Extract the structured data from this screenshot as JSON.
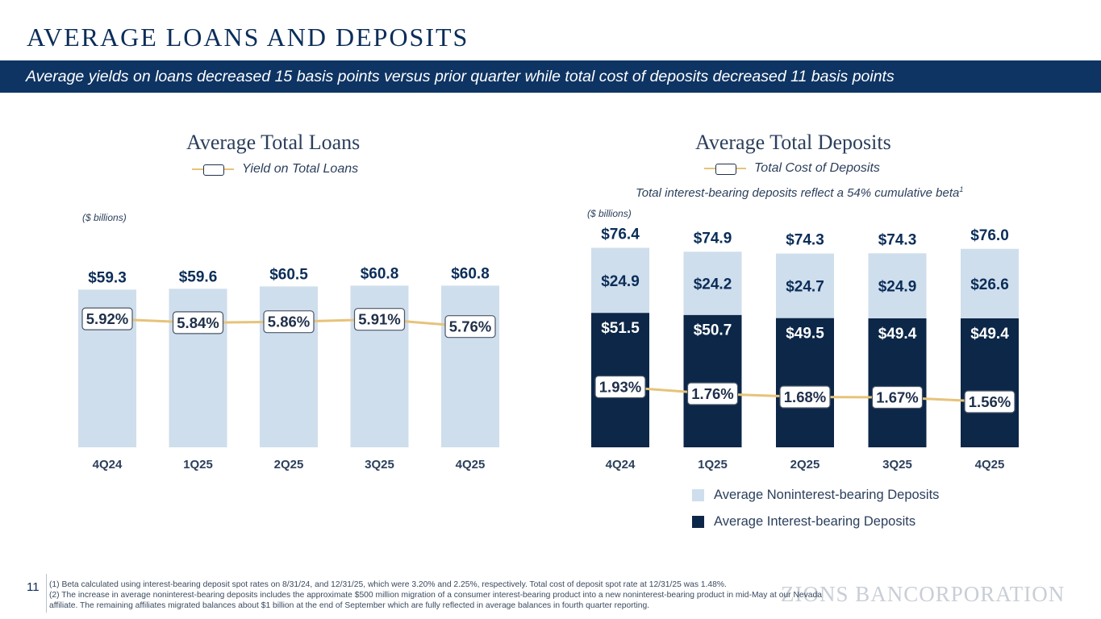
{
  "header": {
    "title": "AVERAGE LOANS AND DEPOSITS",
    "subtitle": "Average yields on loans decreased 15 basis points versus prior quarter while total cost of deposits decreased 11 basis points"
  },
  "loans_panel": {
    "title": "Average Total Loans",
    "legend_label": "Yield on Total Loans",
    "units": "($ billions)"
  },
  "deposits_panel": {
    "title": "Average Total Deposits",
    "legend_label": "Total Cost of Deposits",
    "beta_note": "Total interest-bearing deposits reflect a 54% cumulative beta",
    "beta_note_sup": "1",
    "units": "($ billions)",
    "legend_noninterest": "Average Noninterest-bearing Deposits",
    "legend_interest": "Average Interest-bearing Deposits"
  },
  "colors": {
    "light_bar": "#cfdeec",
    "dark_bar": "#0c2748",
    "line": "#e6c37a",
    "label_dark": "#0b2d59",
    "label_light": "#ffffff"
  },
  "chart_data": [
    {
      "type": "bar",
      "title": "Average Total Loans",
      "units": "($ billions)",
      "categories": [
        "4Q24",
        "1Q25",
        "2Q25",
        "3Q25",
        "4Q25"
      ],
      "values": [
        59.3,
        59.6,
        60.5,
        60.8,
        60.8
      ],
      "value_labels": [
        "$59.3",
        "$59.6",
        "$60.5",
        "$60.8",
        "$60.8"
      ],
      "line_series": {
        "name": "Yield on Total Loans",
        "values": [
          5.92,
          5.84,
          5.86,
          5.91,
          5.76
        ],
        "labels": [
          "5.92%",
          "5.84%",
          "5.86%",
          "5.91%",
          "5.76%"
        ]
      }
    },
    {
      "type": "bar",
      "stacked": true,
      "title": "Average Total Deposits",
      "units": "($ billions)",
      "categories": [
        "4Q24",
        "1Q25",
        "2Q25",
        "3Q25",
        "4Q25"
      ],
      "totals": [
        76.4,
        74.9,
        74.3,
        74.3,
        76.0
      ],
      "total_labels": [
        "$76.4",
        "$74.9",
        "$74.3",
        "$74.3",
        "$76.0"
      ],
      "series": [
        {
          "name": "Average Interest-bearing Deposits",
          "values": [
            51.5,
            50.7,
            49.5,
            49.4,
            49.4
          ],
          "labels": [
            "$51.5",
            "$50.7",
            "$49.5",
            "$49.4",
            "$49.4"
          ]
        },
        {
          "name": "Average Noninterest-bearing Deposits",
          "values": [
            24.9,
            24.2,
            24.7,
            24.9,
            26.6
          ],
          "labels": [
            "$24.9",
            "$24.2",
            "$24.7",
            "$24.9",
            "$26.6"
          ]
        }
      ],
      "line_series": {
        "name": "Total Cost of Deposits",
        "values": [
          1.93,
          1.76,
          1.68,
          1.67,
          1.56
        ],
        "labels": [
          "1.93%",
          "1.76%",
          "1.68%",
          "1.67%",
          "1.56%"
        ]
      }
    }
  ],
  "footer": {
    "page_number": "11",
    "footnote_1": "(1) Beta calculated using interest-bearing deposit spot rates on 8/31/24, and 12/31/25, which were 3.20% and 2.25%, respectively. Total cost of deposit spot rate at 12/31/25 was 1.48%.",
    "footnote_2": "(2) The increase in average noninterest-bearing deposits includes the approximate $500 million migration of a consumer interest-bearing product into a new noninterest-bearing product in mid-May at our Nevada affiliate. The remaining affiliates migrated balances about $1 billion at the end of September which are fully reflected in average balances in fourth quarter reporting.",
    "logo_text": "ZIONS BANCORPORATION"
  }
}
